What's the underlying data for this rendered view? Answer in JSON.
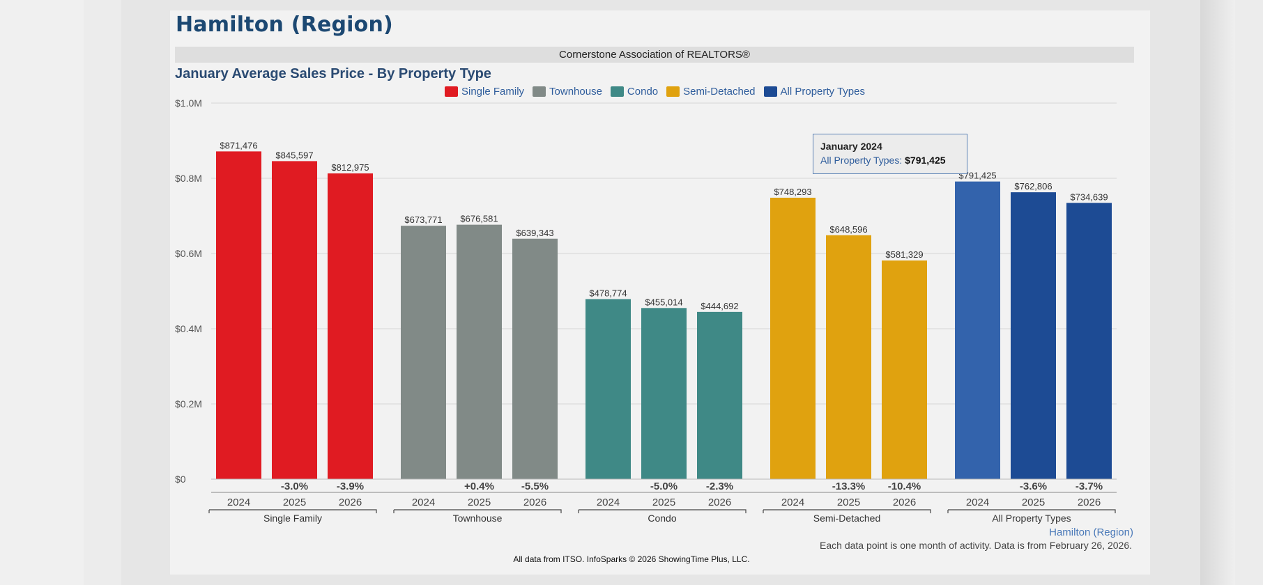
{
  "region_title": "Hamilton (Region)",
  "association": "Cornerstone Association of REALTORS®",
  "chart_title": "January Average Sales Price - By Property Type",
  "tooltip": {
    "title": "January 2024",
    "series_label": "All Property Types:",
    "value_label": "$791,425"
  },
  "footer": {
    "region_link": "Hamilton (Region)",
    "note": "Each data point is one month of activity. Data is from February 26, 2026.",
    "credit": "All data from ITSO. InfoSparks © 2026 ShowingTime Plus, LLC."
  },
  "chart_data": {
    "type": "bar",
    "title": "January Average Sales Price - By Property Type",
    "ylim": [
      0,
      1000000
    ],
    "y_ticks": [
      {
        "value": 0,
        "label": "$0"
      },
      {
        "value": 200000,
        "label": "$0.2M"
      },
      {
        "value": 400000,
        "label": "$0.4M"
      },
      {
        "value": 600000,
        "label": "$0.6M"
      },
      {
        "value": 800000,
        "label": "$0.8M"
      },
      {
        "value": 1000000,
        "label": "$1.0M"
      }
    ],
    "grid": true,
    "legend_position": "top-center",
    "years": [
      "2024",
      "2025",
      "2026"
    ],
    "series": [
      {
        "name": "Single Family",
        "color": "#e01b22",
        "values": [
          871476,
          845597,
          812975
        ],
        "value_labels": [
          "$871,476",
          "$845,597",
          "$812,975"
        ],
        "changes": [
          "",
          "-3.0%",
          "-3.9%"
        ]
      },
      {
        "name": "Townhouse",
        "color": "#818a87",
        "values": [
          673771,
          676581,
          639343
        ],
        "value_labels": [
          "$673,771",
          "$676,581",
          "$639,343"
        ],
        "changes": [
          "",
          "+0.4%",
          "-5.5%"
        ]
      },
      {
        "name": "Condo",
        "color": "#3f8986",
        "values": [
          478774,
          455014,
          444692
        ],
        "value_labels": [
          "$478,774",
          "$455,014",
          "$444,692"
        ],
        "changes": [
          "",
          "-5.0%",
          "-2.3%"
        ]
      },
      {
        "name": "Semi-Detached",
        "color": "#e0a20f",
        "values": [
          748293,
          648596,
          581329
        ],
        "value_labels": [
          "$748,293",
          "$648,596",
          "$581,329"
        ],
        "changes": [
          "",
          "-13.3%",
          "-10.4%"
        ]
      },
      {
        "name": "All Property Types",
        "color": "#1d4b94",
        "highlight_color": "#3363ac",
        "values": [
          791425,
          762806,
          734639
        ],
        "value_labels": [
          "$791,425",
          "$762,806",
          "$734,639"
        ],
        "changes": [
          "",
          "-3.6%",
          "-3.7%"
        ]
      }
    ]
  }
}
